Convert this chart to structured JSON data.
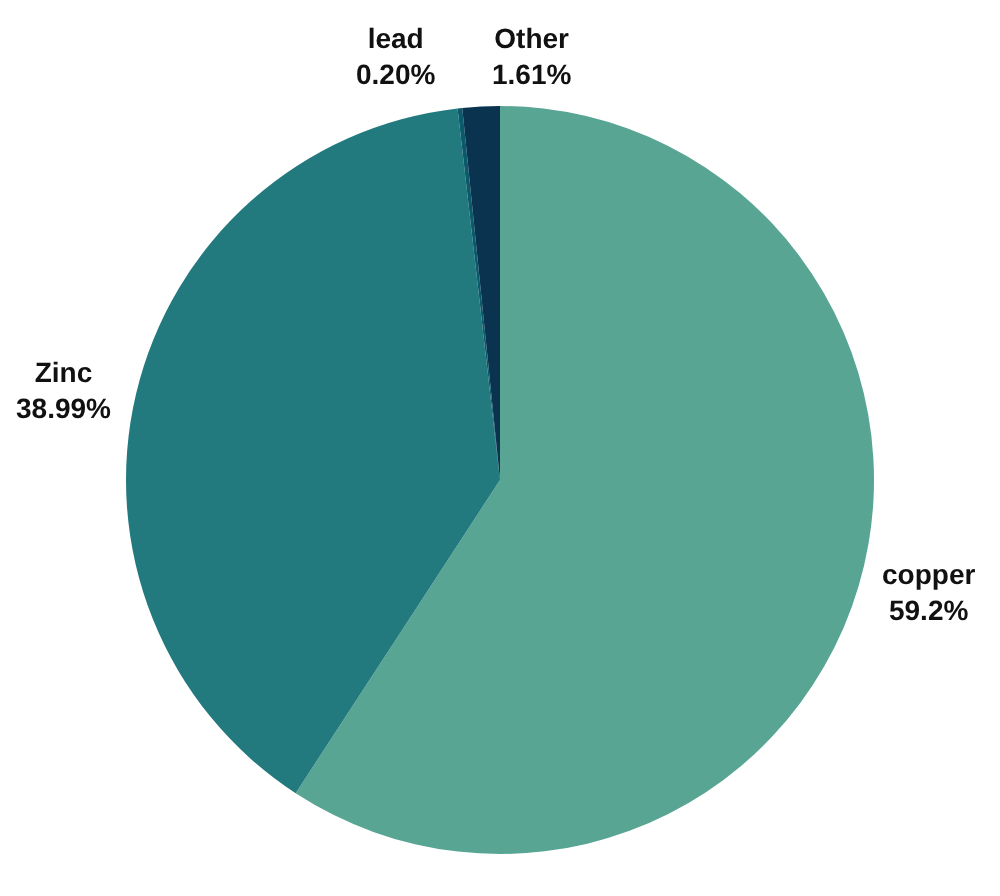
{
  "chart_data": {
    "type": "pie",
    "categories": [
      "copper",
      "Zinc",
      "lead",
      "Other"
    ],
    "values": [
      59.2,
      38.99,
      0.2,
      1.61
    ],
    "colors": [
      "#58a594",
      "#237a7e",
      "#0b5a6b",
      "#0a3350"
    ],
    "value_labels": [
      "59.2%",
      "38.99%",
      "0.20%",
      "1.61%"
    ],
    "legend": false
  }
}
